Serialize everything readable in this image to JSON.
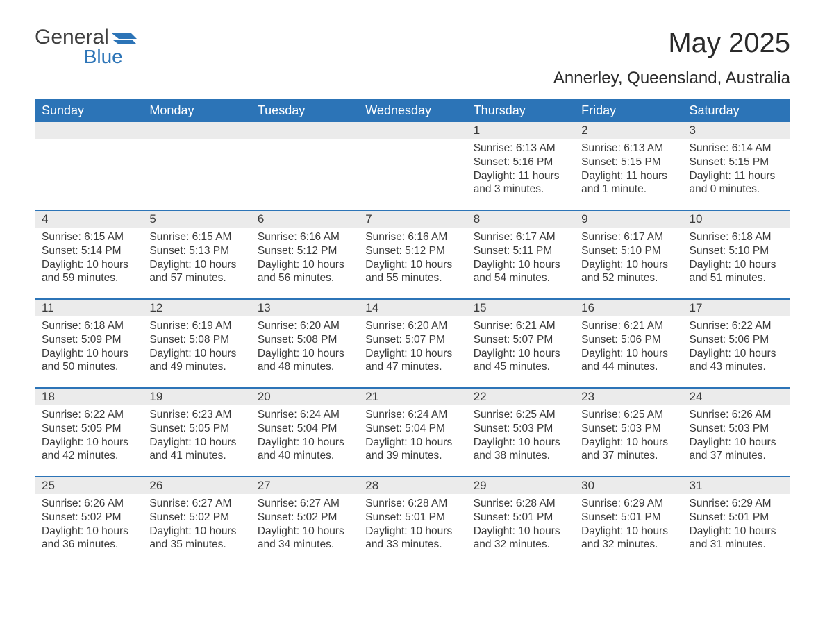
{
  "logo": {
    "general": "General",
    "blue": "Blue"
  },
  "title": "May 2025",
  "subtitle": "Annerley, Queensland, Australia",
  "brand_color": "#2c74b7",
  "header_bg": "#2c74b7",
  "header_fg": "#ffffff",
  "daynum_bg": "#ebebeb",
  "text_color": "#3a3a3a",
  "days_of_week": [
    "Sunday",
    "Monday",
    "Tuesday",
    "Wednesday",
    "Thursday",
    "Friday",
    "Saturday"
  ],
  "weeks": [
    [
      {
        "empty": true
      },
      {
        "empty": true
      },
      {
        "empty": true
      },
      {
        "empty": true
      },
      {
        "n": "1",
        "sunrise": "Sunrise: 6:13 AM",
        "sunset": "Sunset: 5:16 PM",
        "daylight": "Daylight: 11 hours and 3 minutes."
      },
      {
        "n": "2",
        "sunrise": "Sunrise: 6:13 AM",
        "sunset": "Sunset: 5:15 PM",
        "daylight": "Daylight: 11 hours and 1 minute."
      },
      {
        "n": "3",
        "sunrise": "Sunrise: 6:14 AM",
        "sunset": "Sunset: 5:15 PM",
        "daylight": "Daylight: 11 hours and 0 minutes."
      }
    ],
    [
      {
        "n": "4",
        "sunrise": "Sunrise: 6:15 AM",
        "sunset": "Sunset: 5:14 PM",
        "daylight": "Daylight: 10 hours and 59 minutes."
      },
      {
        "n": "5",
        "sunrise": "Sunrise: 6:15 AM",
        "sunset": "Sunset: 5:13 PM",
        "daylight": "Daylight: 10 hours and 57 minutes."
      },
      {
        "n": "6",
        "sunrise": "Sunrise: 6:16 AM",
        "sunset": "Sunset: 5:12 PM",
        "daylight": "Daylight: 10 hours and 56 minutes."
      },
      {
        "n": "7",
        "sunrise": "Sunrise: 6:16 AM",
        "sunset": "Sunset: 5:12 PM",
        "daylight": "Daylight: 10 hours and 55 minutes."
      },
      {
        "n": "8",
        "sunrise": "Sunrise: 6:17 AM",
        "sunset": "Sunset: 5:11 PM",
        "daylight": "Daylight: 10 hours and 54 minutes."
      },
      {
        "n": "9",
        "sunrise": "Sunrise: 6:17 AM",
        "sunset": "Sunset: 5:10 PM",
        "daylight": "Daylight: 10 hours and 52 minutes."
      },
      {
        "n": "10",
        "sunrise": "Sunrise: 6:18 AM",
        "sunset": "Sunset: 5:10 PM",
        "daylight": "Daylight: 10 hours and 51 minutes."
      }
    ],
    [
      {
        "n": "11",
        "sunrise": "Sunrise: 6:18 AM",
        "sunset": "Sunset: 5:09 PM",
        "daylight": "Daylight: 10 hours and 50 minutes."
      },
      {
        "n": "12",
        "sunrise": "Sunrise: 6:19 AM",
        "sunset": "Sunset: 5:08 PM",
        "daylight": "Daylight: 10 hours and 49 minutes."
      },
      {
        "n": "13",
        "sunrise": "Sunrise: 6:20 AM",
        "sunset": "Sunset: 5:08 PM",
        "daylight": "Daylight: 10 hours and 48 minutes."
      },
      {
        "n": "14",
        "sunrise": "Sunrise: 6:20 AM",
        "sunset": "Sunset: 5:07 PM",
        "daylight": "Daylight: 10 hours and 47 minutes."
      },
      {
        "n": "15",
        "sunrise": "Sunrise: 6:21 AM",
        "sunset": "Sunset: 5:07 PM",
        "daylight": "Daylight: 10 hours and 45 minutes."
      },
      {
        "n": "16",
        "sunrise": "Sunrise: 6:21 AM",
        "sunset": "Sunset: 5:06 PM",
        "daylight": "Daylight: 10 hours and 44 minutes."
      },
      {
        "n": "17",
        "sunrise": "Sunrise: 6:22 AM",
        "sunset": "Sunset: 5:06 PM",
        "daylight": "Daylight: 10 hours and 43 minutes."
      }
    ],
    [
      {
        "n": "18",
        "sunrise": "Sunrise: 6:22 AM",
        "sunset": "Sunset: 5:05 PM",
        "daylight": "Daylight: 10 hours and 42 minutes."
      },
      {
        "n": "19",
        "sunrise": "Sunrise: 6:23 AM",
        "sunset": "Sunset: 5:05 PM",
        "daylight": "Daylight: 10 hours and 41 minutes."
      },
      {
        "n": "20",
        "sunrise": "Sunrise: 6:24 AM",
        "sunset": "Sunset: 5:04 PM",
        "daylight": "Daylight: 10 hours and 40 minutes."
      },
      {
        "n": "21",
        "sunrise": "Sunrise: 6:24 AM",
        "sunset": "Sunset: 5:04 PM",
        "daylight": "Daylight: 10 hours and 39 minutes."
      },
      {
        "n": "22",
        "sunrise": "Sunrise: 6:25 AM",
        "sunset": "Sunset: 5:03 PM",
        "daylight": "Daylight: 10 hours and 38 minutes."
      },
      {
        "n": "23",
        "sunrise": "Sunrise: 6:25 AM",
        "sunset": "Sunset: 5:03 PM",
        "daylight": "Daylight: 10 hours and 37 minutes."
      },
      {
        "n": "24",
        "sunrise": "Sunrise: 6:26 AM",
        "sunset": "Sunset: 5:03 PM",
        "daylight": "Daylight: 10 hours and 37 minutes."
      }
    ],
    [
      {
        "n": "25",
        "sunrise": "Sunrise: 6:26 AM",
        "sunset": "Sunset: 5:02 PM",
        "daylight": "Daylight: 10 hours and 36 minutes."
      },
      {
        "n": "26",
        "sunrise": "Sunrise: 6:27 AM",
        "sunset": "Sunset: 5:02 PM",
        "daylight": "Daylight: 10 hours and 35 minutes."
      },
      {
        "n": "27",
        "sunrise": "Sunrise: 6:27 AM",
        "sunset": "Sunset: 5:02 PM",
        "daylight": "Daylight: 10 hours and 34 minutes."
      },
      {
        "n": "28",
        "sunrise": "Sunrise: 6:28 AM",
        "sunset": "Sunset: 5:01 PM",
        "daylight": "Daylight: 10 hours and 33 minutes."
      },
      {
        "n": "29",
        "sunrise": "Sunrise: 6:28 AM",
        "sunset": "Sunset: 5:01 PM",
        "daylight": "Daylight: 10 hours and 32 minutes."
      },
      {
        "n": "30",
        "sunrise": "Sunrise: 6:29 AM",
        "sunset": "Sunset: 5:01 PM",
        "daylight": "Daylight: 10 hours and 32 minutes."
      },
      {
        "n": "31",
        "sunrise": "Sunrise: 6:29 AM",
        "sunset": "Sunset: 5:01 PM",
        "daylight": "Daylight: 10 hours and 31 minutes."
      }
    ]
  ]
}
